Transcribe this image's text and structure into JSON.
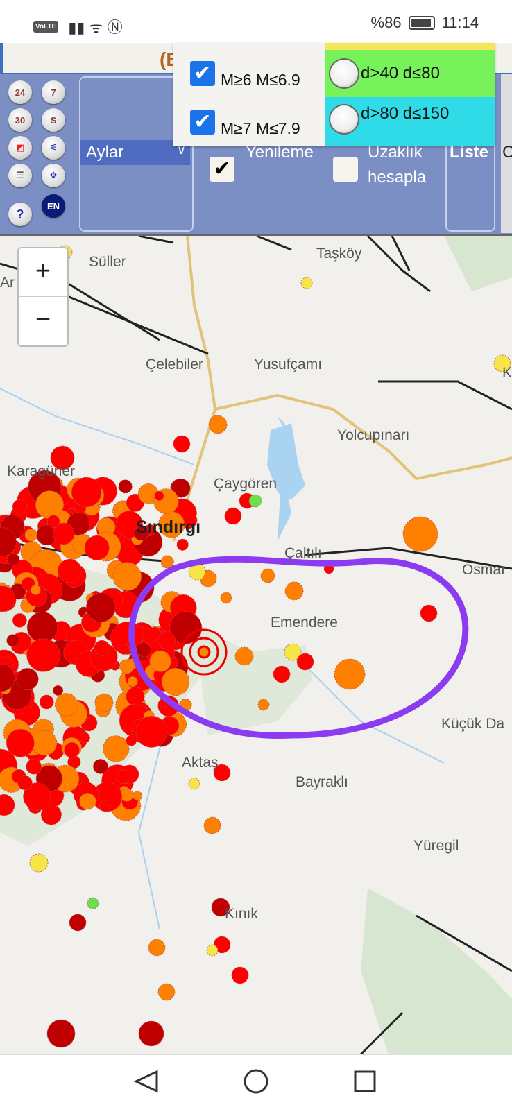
{
  "status_bar": {
    "network": "VoLTE",
    "battery": "%86",
    "time": "11:14"
  },
  "banner": {
    "partial_text": "(E"
  },
  "toolbar": {
    "round_buttons": [
      "24",
      "7",
      "30",
      "S",
      "compass",
      "fault-lines",
      "list",
      "move",
      "?",
      "EN"
    ],
    "period_select": {
      "value": "Aylar"
    },
    "refresh": {
      "label": "Yenileme",
      "checked": true
    },
    "distance": {
      "label_line1": "Uzaklık",
      "label_line2": "hesapla",
      "checked": false
    },
    "list_button": "Liste",
    "cut_text": "C"
  },
  "popup": {
    "magnitude_filters": [
      {
        "label": "M≥6  M≤6.9",
        "checked": true
      },
      {
        "label": "M≥7  M≤7.9",
        "checked": true
      }
    ],
    "depth_filters": [
      {
        "label": "d>40  d≤80",
        "color": "#77f25a"
      },
      {
        "label": "d>80 d≤150",
        "color": "#30dbe8"
      }
    ],
    "top_band_color": "#f5e55a"
  },
  "map": {
    "zoom_in": "+",
    "zoom_out": "−",
    "places": [
      "Süller",
      "Taşköy",
      "Çelebiler",
      "Yusufçamı",
      "Yolcupınarı",
      "Karagürler",
      "Çaygören",
      "Sındırgı",
      "Çaltılı",
      "Osmaı",
      "Emendere",
      "Küçük Da",
      "Aktaş",
      "Bayraklı",
      "Yüregil",
      "Kınık",
      "Ar",
      "K"
    ],
    "marker_colors": {
      "red": "#ff0000",
      "dark_red": "#c00000",
      "orange": "#ff7f00",
      "yellow": "#f7e547",
      "green": "#6be04a"
    },
    "annotation_color": "#8b3cf0"
  }
}
